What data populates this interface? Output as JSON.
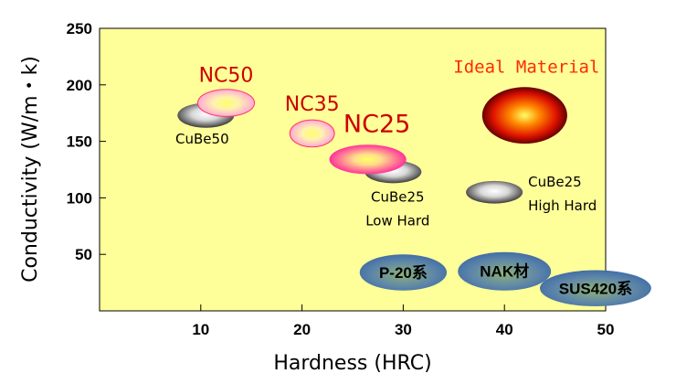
{
  "chart_data": {
    "type": "scatter",
    "title": "",
    "xlabel": "Hardness (HRC)",
    "ylabel": "Conductivity (W/m・k)",
    "xlim": [
      0,
      50
    ],
    "ylim": [
      0,
      250
    ],
    "xticks": [
      10,
      20,
      30,
      40,
      50
    ],
    "yticks": [
      50,
      100,
      150,
      200,
      250
    ],
    "background": "#ffff99",
    "grid": false,
    "points": [
      {
        "id": "cube50",
        "label": "CuBe50",
        "x": 10.5,
        "y": 173,
        "rx": 2.8,
        "ry": 11,
        "fill": "grad-gray",
        "text_pos": "below"
      },
      {
        "id": "nc50",
        "label": "NC50",
        "x": 12.5,
        "y": 184,
        "rx": 2.8,
        "ry": 12,
        "fill": "grad-pink",
        "text_pos": "above"
      },
      {
        "id": "nc35",
        "label": "NC35",
        "x": 21,
        "y": 157,
        "rx": 2.2,
        "ry": 12,
        "fill": "grad-pink",
        "text_pos": "above"
      },
      {
        "id": "cube25lh",
        "label": [
          "CuBe25",
          "Low Hard"
        ],
        "x": 29,
        "y": 123,
        "rx": 2.8,
        "ry": 10,
        "fill": "grad-gray",
        "text_pos": "below"
      },
      {
        "id": "nc25",
        "label": "NC25",
        "x": 26.5,
        "y": 134,
        "rx": 3.8,
        "ry": 13,
        "fill": "grad-magenta",
        "text_pos": "above"
      },
      {
        "id": "cube25hh",
        "label": [
          "CuBe25",
          "High Hard"
        ],
        "x": 39,
        "y": 105,
        "rx": 2.8,
        "ry": 10,
        "fill": "grad-gray",
        "text_pos": "right"
      },
      {
        "id": "ideal",
        "label": "Ideal Material",
        "x": 42,
        "y": 173,
        "rx": 4.2,
        "ry": 25,
        "fill": "grad-fire",
        "text_pos": "above"
      },
      {
        "id": "p20",
        "label": "P-20系",
        "x": 30,
        "y": 34,
        "rx": 4.3,
        "ry": 16,
        "fill": "grad-steel",
        "text_pos": "center"
      },
      {
        "id": "nak",
        "label": "NAK材",
        "x": 40,
        "y": 35,
        "rx": 4.6,
        "ry": 17,
        "fill": "grad-steel",
        "text_pos": "center"
      },
      {
        "id": "sus420",
        "label": "SUS420系",
        "x": 49,
        "y": 20,
        "rx": 5.5,
        "ry": 16,
        "fill": "grad-steel",
        "text_pos": "center"
      }
    ]
  }
}
